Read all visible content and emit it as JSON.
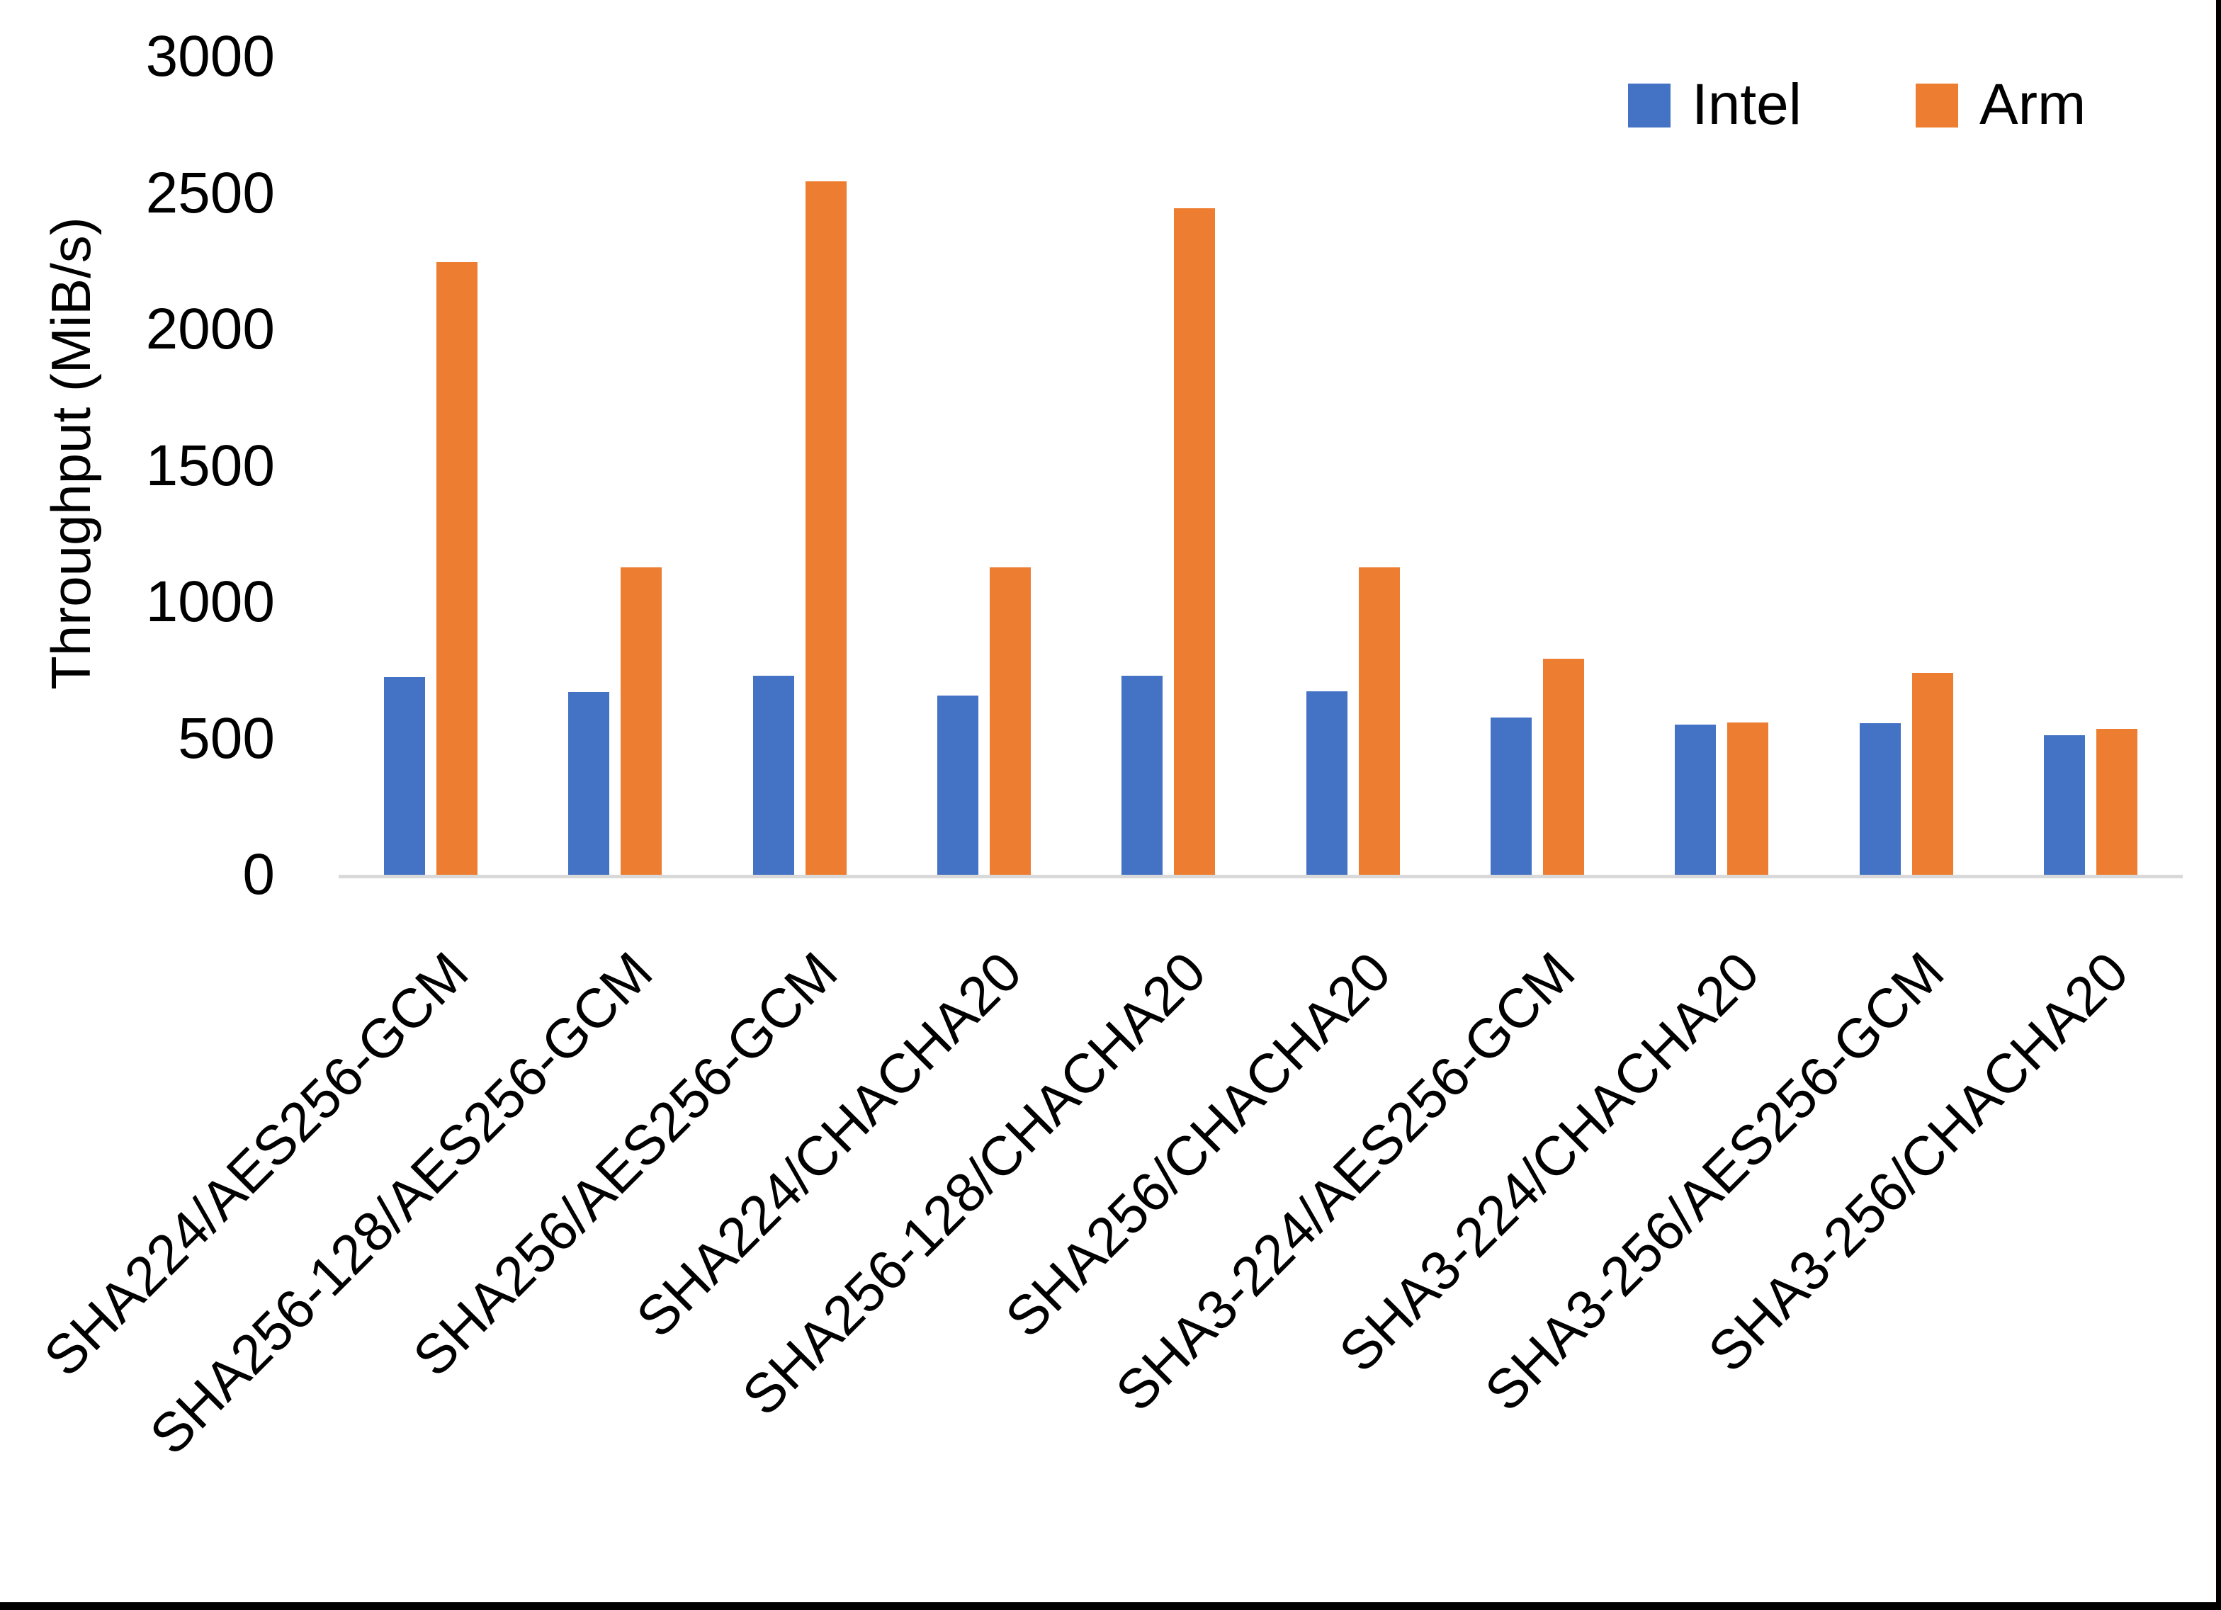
{
  "chart_data": {
    "type": "bar",
    "title": "",
    "ylabel": "Throughput (MiB/s)",
    "xlabel": "",
    "ylim": [
      0,
      3000
    ],
    "yticks": [
      0,
      500,
      1000,
      1500,
      2000,
      2500,
      3000
    ],
    "grid": false,
    "legend_position": "top-right",
    "categories": [
      "SHA224/AES256-GCM",
      "SHA256-128/AES256-GCM",
      "SHA256/AES256-GCM",
      "SHA224/CHACHA20",
      "SHA256-128/CHACHA20",
      "SHA256/CHACHA20",
      "SHA3-224/AES256-GCM",
      "SHA3-224/CHACHA20",
      "SHA3-256/AES256-GCM",
      "SHA3-256/CHACHA20"
    ],
    "series": [
      {
        "name": "Intel",
        "color": "#4472C4",
        "values": [
          725,
          671,
          729,
          658,
          729,
          673,
          576,
          551,
          557,
          511
        ]
      },
      {
        "name": "Arm",
        "color": "#ED7D31",
        "values": [
          2247,
          1126,
          2543,
          1126,
          2443,
          1126,
          793,
          559,
          740,
          535
        ]
      }
    ]
  },
  "figure": {
    "background": "#FFFFFF",
    "axis_line_color": "#D9D9D9",
    "text_color": "#000000",
    "border_color": "#000000"
  }
}
